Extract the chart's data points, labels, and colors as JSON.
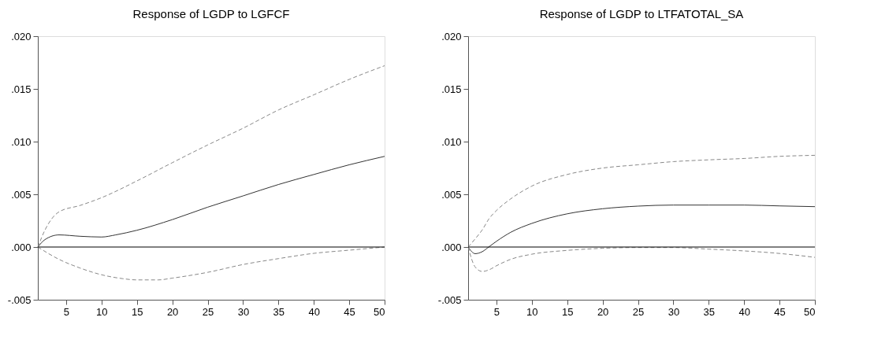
{
  "chart_data": [
    {
      "type": "line",
      "title": "Response of LGDP to LGFCF",
      "xlim": [
        1,
        50
      ],
      "xticks": [
        5,
        10,
        15,
        20,
        25,
        30,
        35,
        40,
        45,
        50
      ],
      "ylim": [
        -0.005,
        0.02
      ],
      "yticks": [
        {
          "value": -0.005,
          "label": "-.005"
        },
        {
          "value": 0,
          "label": ".000"
        },
        {
          "value": 0.005,
          "label": ".005"
        },
        {
          "value": 0.01,
          "label": ".010"
        },
        {
          "value": 0.015,
          "label": ".015"
        },
        {
          "value": 0.02,
          "label": ".020"
        }
      ],
      "grid": false,
      "ref_lines": [
        {
          "axis": "y",
          "value": 0,
          "color": "#000000",
          "line_style": "solid"
        }
      ],
      "series": [
        {
          "color": "#333333",
          "line_style": "solid",
          "x": [
            1,
            2,
            4,
            7,
            10,
            12,
            15,
            20,
            25,
            30,
            35,
            40,
            45,
            50
          ],
          "values": [
            0,
            0.0007,
            0.00115,
            0.00102,
            0.00095,
            0.00115,
            0.00159,
            0.0026,
            0.00378,
            0.00485,
            0.00593,
            0.00688,
            0.0078,
            0.0086
          ]
        },
        {
          "color": "#888888",
          "line_style": "dashed",
          "x": [
            1,
            2,
            4,
            7,
            10,
            15,
            20,
            25,
            30,
            35,
            40,
            45,
            50
          ],
          "values": [
            0,
            0.0016,
            0.00334,
            0.00395,
            0.00468,
            0.00627,
            0.008,
            0.00968,
            0.01127,
            0.013,
            0.01444,
            0.0159,
            0.0172
          ]
        },
        {
          "color": "#888888",
          "line_style": "dashed",
          "x": [
            1,
            4,
            7,
            10,
            13,
            15,
            18,
            20,
            25,
            30,
            35,
            40,
            45,
            50
          ],
          "values": [
            0,
            -0.00117,
            -0.002,
            -0.00263,
            -0.003,
            -0.00312,
            -0.00312,
            -0.00295,
            -0.0024,
            -0.00166,
            -0.0011,
            -0.0006,
            -0.0003,
            0
          ]
        }
      ]
    },
    {
      "type": "line",
      "title": "Response of LGDP to LTFATOTAL_SA",
      "xlim": [
        1,
        50
      ],
      "xticks": [
        5,
        10,
        15,
        20,
        25,
        30,
        35,
        40,
        45,
        50
      ],
      "ylim": [
        -0.005,
        0.02
      ],
      "yticks": [
        {
          "value": -0.005,
          "label": "-.005"
        },
        {
          "value": 0,
          "label": ".000"
        },
        {
          "value": 0.005,
          "label": ".005"
        },
        {
          "value": 0.01,
          "label": ".010"
        },
        {
          "value": 0.015,
          "label": ".015"
        },
        {
          "value": 0.02,
          "label": ".020"
        }
      ],
      "grid": false,
      "ref_lines": [
        {
          "axis": "y",
          "value": 0,
          "color": "#000000",
          "line_style": "solid"
        }
      ],
      "series": [
        {
          "color": "#333333",
          "line_style": "solid",
          "x": [
            1,
            2,
            3,
            4,
            5,
            7,
            10,
            15,
            20,
            25,
            30,
            35,
            40,
            45,
            50
          ],
          "values": [
            0,
            -0.00063,
            -0.00044,
            5e-05,
            0.00054,
            0.00139,
            0.00224,
            0.00315,
            0.00363,
            0.00388,
            0.00398,
            0.00398,
            0.00398,
            0.0039,
            0.00383
          ]
        },
        {
          "color": "#888888",
          "line_style": "dashed",
          "x": [
            1,
            2,
            3,
            4,
            5,
            7,
            10,
            15,
            20,
            25,
            30,
            35,
            40,
            45,
            50
          ],
          "values": [
            0,
            0.00078,
            0.00163,
            0.00273,
            0.00346,
            0.00456,
            0.00578,
            0.00688,
            0.00749,
            0.0078,
            0.0081,
            0.00827,
            0.0084,
            0.0086,
            0.0087
          ]
        },
        {
          "color": "#888888",
          "line_style": "dashed",
          "x": [
            1,
            2,
            3,
            4,
            5,
            7,
            10,
            15,
            20,
            25,
            30,
            35,
            40,
            45,
            50
          ],
          "values": [
            0,
            -0.0019,
            -0.00232,
            -0.00215,
            -0.00178,
            -0.00117,
            -0.00068,
            -0.00032,
            -0.00012,
            -5e-05,
            -5e-05,
            -0.0002,
            -0.00037,
            -0.00061,
            -0.00098
          ]
        }
      ]
    }
  ]
}
